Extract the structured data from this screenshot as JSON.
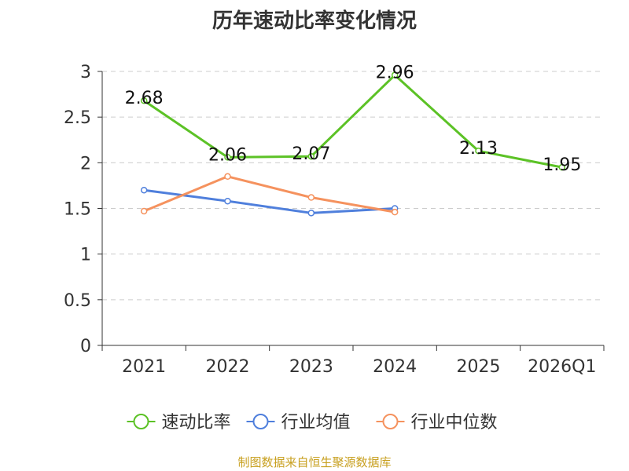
{
  "chart_data": {
    "type": "line",
    "title": "历年速动比率变化情况",
    "categories": [
      "2021",
      "2022",
      "2023",
      "2024",
      "2025",
      "2026Q1"
    ],
    "ylim": [
      0,
      3
    ],
    "yticks": [
      "0",
      "0.5",
      "1",
      "1.5",
      "2",
      "2.5",
      "3"
    ],
    "grid": true,
    "legend_position": "bottom",
    "series": [
      {
        "name": "速动比率",
        "color": "#5cc226",
        "values": [
          2.68,
          2.06,
          2.07,
          2.96,
          2.13,
          1.95
        ],
        "labels": [
          "2.68",
          "2.06",
          "2.07",
          "2.96",
          "2.13",
          "1.95"
        ]
      },
      {
        "name": "行业均值",
        "color": "#4f7fdc",
        "values": [
          1.7,
          1.58,
          1.45,
          1.5,
          null,
          null
        ]
      },
      {
        "name": "行业中位数",
        "color": "#f5925e",
        "values": [
          1.47,
          1.85,
          1.62,
          1.46,
          null,
          null
        ]
      }
    ]
  },
  "footer": "制图数据来自恒生聚源数据库"
}
